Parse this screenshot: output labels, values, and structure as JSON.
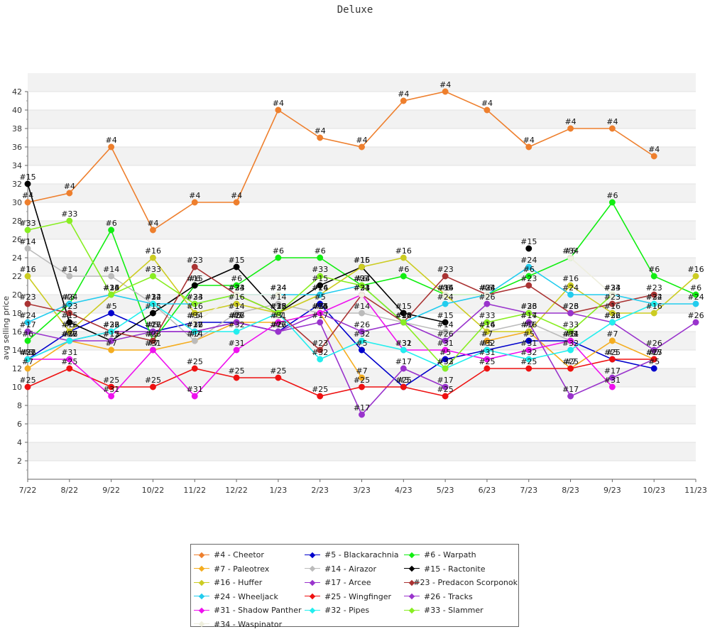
{
  "chart_data": {
    "type": "line",
    "title": "Deluxe",
    "xlabel": "",
    "ylabel": "avg selling price",
    "ylim": [
      0,
      42
    ],
    "yticks": [
      2,
      4,
      6,
      8,
      10,
      12,
      14,
      16,
      18,
      20,
      22,
      24,
      26,
      28,
      30,
      32,
      34,
      36,
      38,
      40,
      42
    ],
    "categories": [
      "7/22",
      "8/22",
      "9/22",
      "10/22",
      "11/22",
      "12/22",
      "1/23",
      "2/23",
      "3/23",
      "4/23",
      "5/23",
      "6/23",
      "7/23",
      "8/23",
      "9/23",
      "10/23",
      "11/23"
    ],
    "series": [
      {
        "name": "#4 - Cheetor",
        "label": "#4",
        "color": "#ee7f2d",
        "values": [
          30,
          31,
          36,
          27,
          30,
          30,
          40,
          37,
          36,
          41,
          42,
          40,
          36,
          38,
          38,
          35,
          null
        ]
      },
      {
        "name": "#5 - Blackarachnia",
        "label": "#5",
        "color": "#0000cc",
        "values": [
          13,
          16,
          18,
          16,
          17,
          17,
          16,
          19,
          14,
          10,
          13,
          14,
          15,
          15,
          13,
          12,
          null
        ]
      },
      {
        "name": "#6 - Warpath",
        "label": "#6",
        "color": "#11ee11",
        "values": [
          15,
          19,
          27,
          15,
          21,
          21,
          24,
          24,
          21,
          22,
          20,
          20,
          22,
          24,
          30,
          22,
          20
        ]
      },
      {
        "name": "#7 - Paleotrex",
        "label": "#7",
        "color": "#f4ad20",
        "values": [
          12,
          15,
          14,
          14,
          15,
          17,
          17,
          18,
          11,
          null,
          null,
          15,
          16,
          12,
          15,
          13,
          null
        ]
      },
      {
        "name": "#14 - Airazor",
        "label": "#14",
        "color": "#bbbbbb",
        "values": [
          25,
          22,
          22,
          19,
          15,
          18,
          19,
          18,
          18,
          17,
          16,
          16,
          17,
          15,
          null,
          null,
          null
        ]
      },
      {
        "name": "#15 - Ractonite",
        "label": "#15",
        "color": "#000000",
        "values": [
          32,
          17,
          15,
          18,
          21,
          23,
          18,
          21,
          23,
          18,
          17,
          null,
          25,
          null,
          null,
          null,
          null
        ]
      },
      {
        "name": "#16 - Huffer",
        "label": "#16",
        "color": "#cccc22",
        "values": [
          22,
          16,
          20,
          24,
          18,
          19,
          18,
          20,
          23,
          24,
          20,
          16,
          16,
          21,
          18,
          18,
          22
        ]
      },
      {
        "name": "#17 - Arcee",
        "label": "#17",
        "color": "#9933cc",
        "values": [
          16,
          15,
          15,
          16,
          16,
          17,
          16,
          17,
          7,
          12,
          10,
          null,
          17,
          9,
          11,
          13,
          null
        ]
      },
      {
        "name": "#23 - Predacon Scorponok",
        "label": "#23",
        "color": "#aa3333",
        "values": [
          19,
          18,
          16,
          15,
          23,
          20,
          18,
          14,
          20,
          17,
          22,
          20,
          21,
          18,
          19,
          20,
          null
        ]
      },
      {
        "name": "#24 - Wheeljack",
        "label": "#24",
        "color": "#22ccee",
        "values": [
          17,
          19,
          20,
          19,
          19,
          20,
          20,
          20,
          21,
          17,
          19,
          20,
          23,
          20,
          20,
          19,
          19
        ]
      },
      {
        "name": "#25 - Wingfinger",
        "label": "#25",
        "color": "#ee1111",
        "values": [
          10,
          12,
          10,
          10,
          12,
          11,
          11,
          9,
          10,
          10,
          9,
          12,
          12,
          12,
          13,
          13,
          null
        ]
      },
      {
        "name": "#26 - Tracks",
        "label": "#26",
        "color": "#9933cc",
        "values": [
          13,
          15,
          16,
          16,
          16,
          17,
          16,
          18,
          16,
          17,
          15,
          19,
          18,
          18,
          17,
          14,
          17
        ]
      },
      {
        "name": "#31 - Shadow Panther",
        "label": "#31",
        "color": "#ee11ee",
        "values": [
          13,
          13,
          9,
          14,
          9,
          14,
          17,
          18,
          20,
          14,
          14,
          13,
          14,
          15,
          10,
          null,
          null
        ]
      },
      {
        "name": "#32 - Pipes",
        "label": "#32",
        "color": "#22eeee",
        "values": [
          13,
          15,
          16,
          19,
          16,
          16,
          18,
          13,
          15,
          14,
          12,
          14,
          13,
          14,
          17,
          19,
          null
        ]
      },
      {
        "name": "#33 - Slammer",
        "label": "#33",
        "color": "#88ee22",
        "values": [
          27,
          28,
          20,
          22,
          19,
          20,
          18,
          22,
          21,
          17,
          12,
          17,
          18,
          16,
          20,
          null,
          null
        ]
      },
      {
        "name": "#34 - Waspinator",
        "label": "#34",
        "color": "#eeeedd",
        "values": [
          null,
          null,
          null,
          null,
          17,
          20,
          20,
          null,
          20,
          null,
          20,
          20,
          null,
          24,
          20,
          null,
          null
        ]
      }
    ]
  }
}
